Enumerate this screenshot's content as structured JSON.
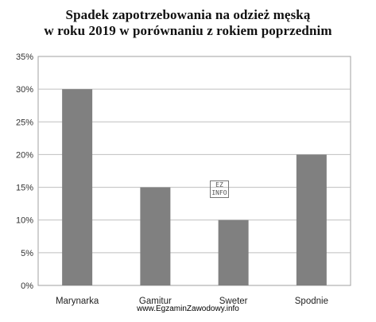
{
  "chart_data": {
    "type": "bar",
    "title_line1": "Spadek zapotrzebowania na odzież męską",
    "title_line2": "w roku 2019 w porównaniu z rokiem poprzednim",
    "categories": [
      "Marynarka",
      "Gamitur",
      "Sweter",
      "Spodnie"
    ],
    "values": [
      30,
      15,
      10,
      20
    ],
    "ylim": [
      0,
      35
    ],
    "y_ticks": [
      "0%",
      "5%",
      "10%",
      "15%",
      "20%",
      "25%",
      "30%",
      "35%"
    ],
    "grid": true,
    "bar_color": "#808080",
    "grid_color": "#bfbfbf"
  },
  "watermark": "www.EgzaminZawodowy.info",
  "stamp": "EZ INFO"
}
